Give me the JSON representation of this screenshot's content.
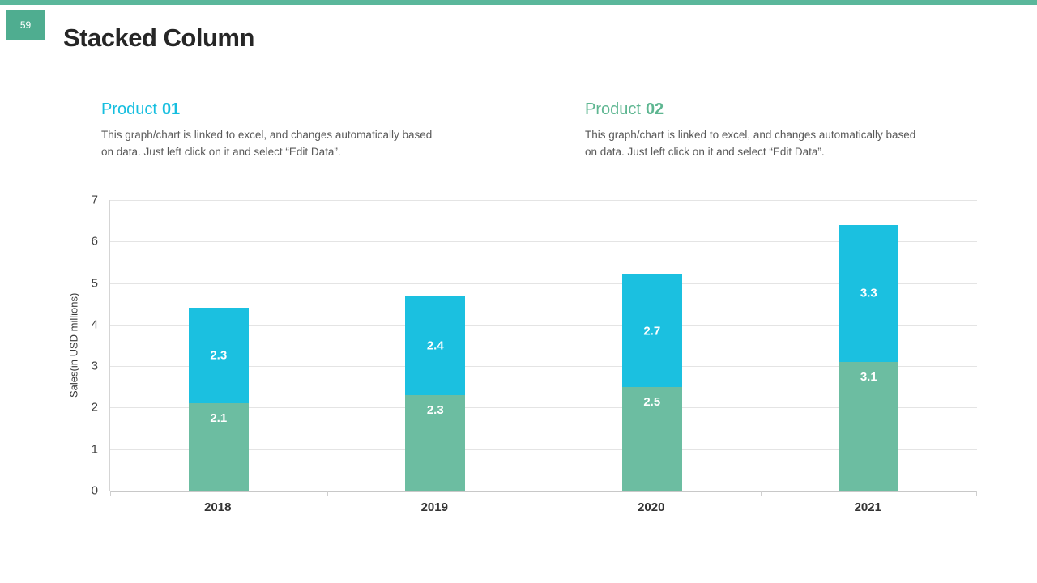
{
  "slide": {
    "page_number": "59",
    "title": "Stacked Column"
  },
  "products": [
    {
      "name": "Product",
      "number": "01",
      "description": "This graph/chart is linked to excel, and changes automatically based on data. Just left click on it and select “Edit Data”."
    },
    {
      "name": "Product",
      "number": "02",
      "description": "This graph/chart is linked to excel, and changes automatically based on data. Just left click on it and select “Edit Data”."
    }
  ],
  "chart_data": {
    "type": "bar",
    "stacked": true,
    "title": "",
    "categories": [
      "2018",
      "2019",
      "2020",
      "2021"
    ],
    "series": [
      {
        "name": "Product 02",
        "color": "#6cbda1",
        "values": [
          2.1,
          2.3,
          2.5,
          3.1
        ],
        "label_position": "top"
      },
      {
        "name": "Product 01",
        "color": "#1bc0e0",
        "values": [
          2.3,
          2.4,
          2.7,
          3.3
        ],
        "label_position": "center"
      }
    ],
    "xlabel": "",
    "ylabel": "Sales(in USD millions)",
    "ylim": [
      0,
      7
    ],
    "ytick_step": 1,
    "grid": true,
    "legend": "none",
    "value_label_color": "#ffffff"
  },
  "theme": {
    "accent_bar_green": "#5ab79b",
    "badge_green": "#4fad90",
    "cyan": "#15bedf",
    "green": "#5eb691",
    "title_color": "#262626",
    "body_text_color": "#595959"
  }
}
